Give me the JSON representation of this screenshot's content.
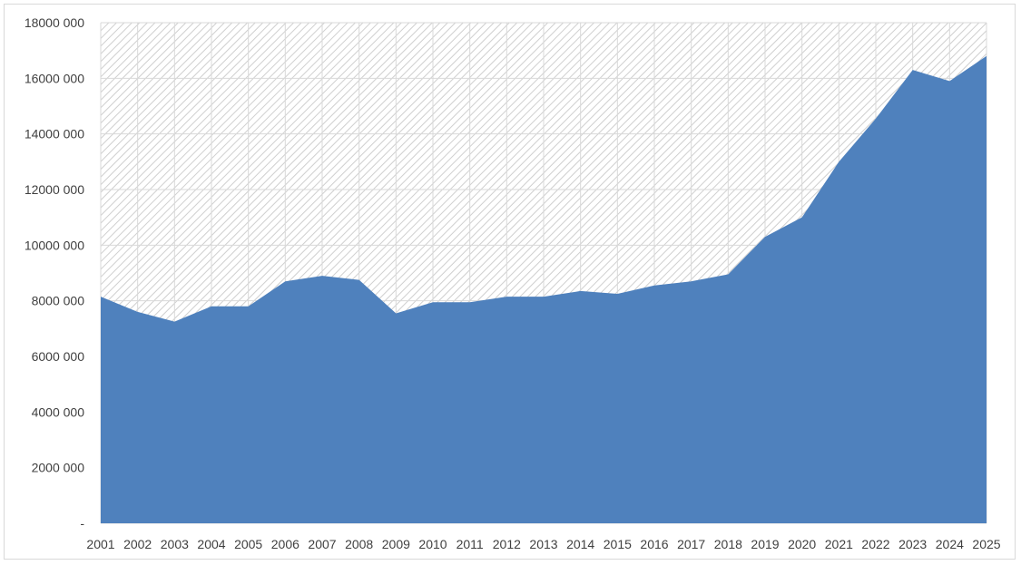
{
  "chart_data": {
    "type": "area",
    "title": "",
    "xlabel": "",
    "ylabel": "",
    "x": [
      "2001",
      "2002",
      "2003",
      "2004",
      "2005",
      "2006",
      "2007",
      "2008",
      "2009",
      "2010",
      "2011",
      "2012",
      "2013",
      "2014",
      "2015",
      "2016",
      "2017",
      "2018",
      "2019",
      "2020",
      "2021",
      "2022",
      "2023",
      "2024",
      "2025"
    ],
    "series": [
      {
        "values": [
          8150000,
          7600000,
          7250000,
          7800000,
          7800000,
          8700000,
          8900000,
          8750000,
          7550000,
          7950000,
          7950000,
          8150000,
          8150000,
          8350000,
          8250000,
          8550000,
          8700000,
          8950000,
          10300000,
          11000000,
          13000000,
          14550000,
          16300000,
          15900000,
          16800000
        ],
        "color": "#4f81bd"
      }
    ],
    "ylim": [
      0,
      18000000
    ],
    "yticks": [
      0,
      2000000,
      4000000,
      6000000,
      8000000,
      10000000,
      12000000,
      14000000,
      16000000,
      18000000
    ],
    "ytick_labels": [
      "-",
      "2000 000",
      "4000 000",
      "6000 000",
      "8000 000",
      "10000 000",
      "12000 000",
      "14000 000",
      "16000 000",
      "18000 000"
    ],
    "grid": true,
    "plot_background": "hatched-gray",
    "legend": "none"
  }
}
